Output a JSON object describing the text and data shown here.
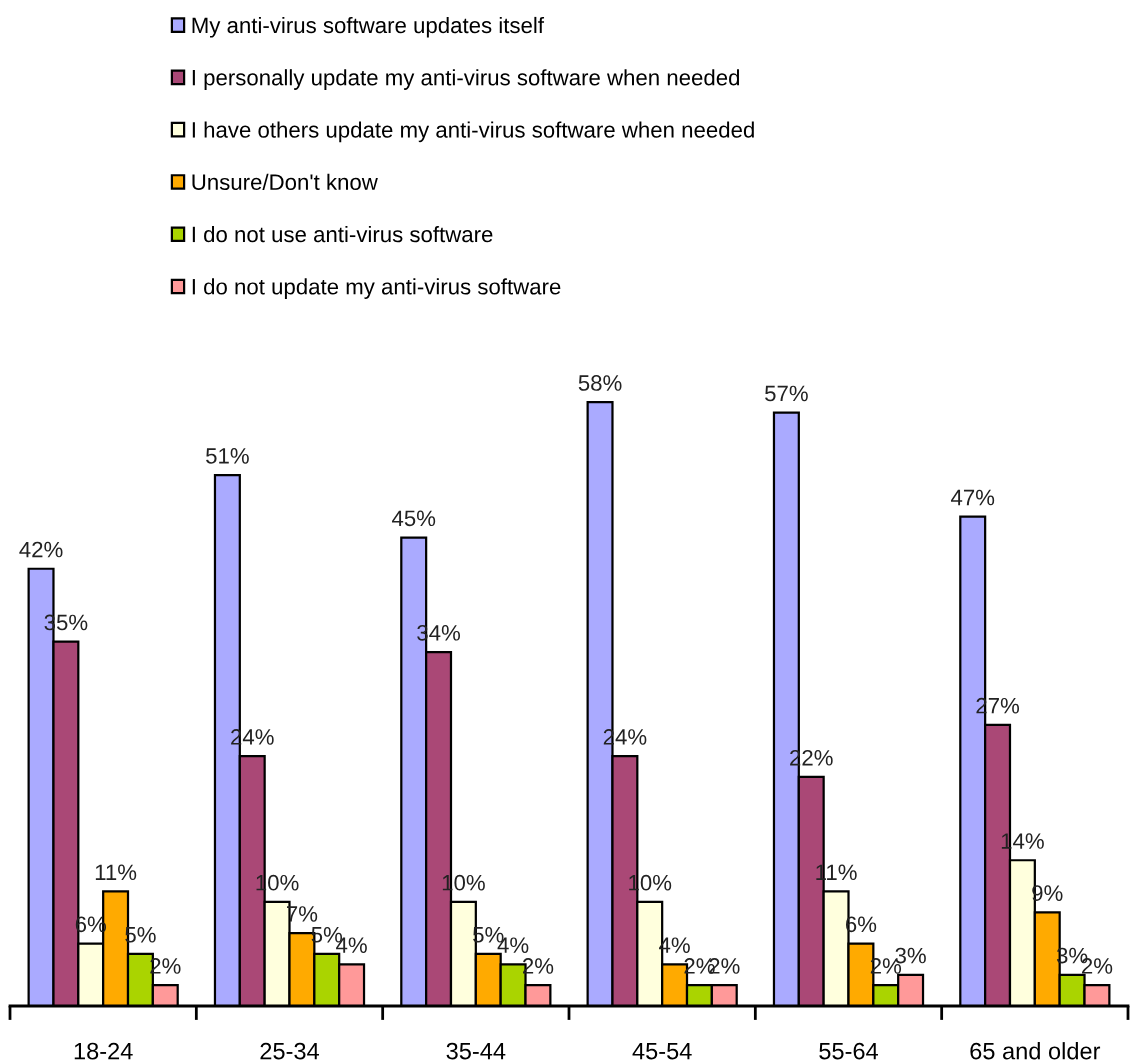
{
  "chart_data": {
    "type": "bar",
    "categories": [
      "18-24",
      "25-34",
      "35-44",
      "45-54",
      "55-64",
      "65 and older"
    ],
    "series": [
      {
        "name": "My anti-virus software updates itself",
        "color": "#aaaaff",
        "values": [
          42,
          51,
          45,
          58,
          57,
          47
        ],
        "value_labels": [
          "42%",
          "51%",
          "45%",
          "58%",
          "57%",
          "47%"
        ]
      },
      {
        "name": "I personally update my anti-virus software when needed",
        "color": "#aa4876",
        "values": [
          35,
          24,
          34,
          24,
          22,
          27
        ],
        "value_labels": [
          "35%",
          "24%",
          "34%",
          "24%",
          "22%",
          "27%"
        ]
      },
      {
        "name": "I have others update my anti-virus software when needed",
        "color": "#ffffdd",
        "values": [
          6,
          10,
          10,
          10,
          11,
          14
        ],
        "value_labels": [
          "6%",
          "10%",
          "10%",
          "10%",
          "11%",
          "14%"
        ]
      },
      {
        "name": "Unsure/Don't know",
        "color": "#ffaa00",
        "values": [
          11,
          7,
          5,
          4,
          6,
          9
        ],
        "value_labels": [
          "11%",
          "7%",
          "5%",
          "4%",
          "6%",
          "9%"
        ]
      },
      {
        "name": "I do not use anti-virus software",
        "color": "#aad400",
        "values": [
          5,
          5,
          4,
          2,
          2,
          3
        ],
        "value_labels": [
          "5%",
          "5%",
          "4%",
          "2%",
          "2%",
          "3%"
        ]
      },
      {
        "name": "I do not update my anti-virus software",
        "color": "#ff9999",
        "values": [
          2,
          4,
          2,
          2,
          3,
          2
        ],
        "value_labels": [
          "2%",
          "4%",
          "2%",
          "2%",
          "3%",
          "2%"
        ]
      }
    ],
    "tick_labels": "x",
    "legend": "top"
  }
}
